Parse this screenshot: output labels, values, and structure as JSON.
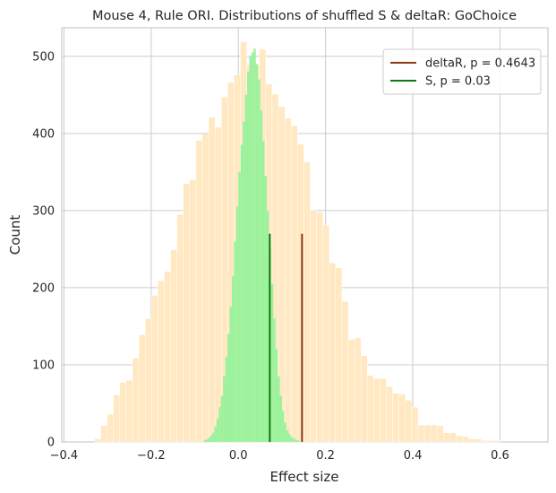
{
  "chart_data": {
    "type": "histogram",
    "title": "Mouse 4, Rule ORI. Distributions of shuffled S & deltaR: GoChoice",
    "xlabel": "Effect size",
    "ylabel": "Count",
    "xlim": [
      -0.405,
      0.71
    ],
    "ylim": [
      0,
      537
    ],
    "xticks": [
      -0.4,
      -0.2,
      0.0,
      0.2,
      0.4,
      0.6
    ],
    "xtick_labels": [
      "−0.4",
      "−0.2",
      "0.0",
      "0.2",
      "0.4",
      "0.6"
    ],
    "yticks": [
      0,
      100,
      200,
      300,
      400,
      500
    ],
    "ytick_labels": [
      "0",
      "100",
      "200",
      "300",
      "400",
      "500"
    ],
    "grid": true,
    "legend_position": "upper right",
    "series": [
      {
        "name": "deltaR",
        "kind": "histogram",
        "color": "#ffe8c2",
        "bin_start": -0.33,
        "bin_width": 0.01455,
        "counts": [
          4,
          21,
          36,
          61,
          77,
          80,
          109,
          139,
          160,
          190,
          209,
          221,
          249,
          295,
          335,
          340,
          391,
          399,
          421,
          408,
          447,
          466,
          476,
          519,
          489,
          490,
          509,
          464,
          451,
          435,
          420,
          410,
          386,
          363,
          300,
          298,
          281,
          232,
          226,
          182,
          133,
          135,
          112,
          86,
          82,
          82,
          72,
          63,
          62,
          54,
          45,
          22,
          22,
          22,
          21,
          12,
          12,
          8,
          7,
          4,
          4,
          2,
          2,
          2
        ]
      },
      {
        "name": "S",
        "kind": "histogram",
        "color": "#9cf29c",
        "bin_start": -0.08,
        "bin_width": 0.005,
        "counts": [
          2,
          3,
          5,
          8,
          12,
          20,
          30,
          45,
          60,
          85,
          110,
          140,
          175,
          215,
          260,
          305,
          350,
          385,
          415,
          450,
          480,
          500,
          505,
          510,
          490,
          470,
          430,
          390,
          345,
          300,
          250,
          205,
          160,
          120,
          85,
          60,
          40,
          25,
          15,
          10,
          6,
          4,
          3,
          2
        ]
      }
    ],
    "vlines": [
      {
        "name": "deltaR, p = 0.4643",
        "x": 0.146,
        "y_top": 270,
        "color": "#8b3a0f"
      },
      {
        "name": "S, p = 0.03",
        "x": 0.072,
        "y_top": 270,
        "color": "#0b7a0b"
      }
    ],
    "legend": [
      {
        "label": "deltaR, p = 0.4643",
        "color": "#8b3a0f"
      },
      {
        "label": "S, p = 0.03",
        "color": "#0b7a0b"
      }
    ]
  }
}
